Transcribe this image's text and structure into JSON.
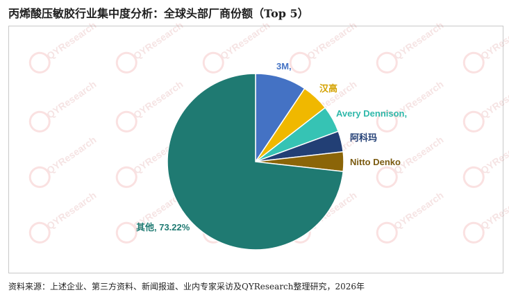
{
  "title": "丙烯酸压敏胶行业集中度分析：全球头部厂商份额（Top 5）",
  "source": "资料来源：上述企业、第三方资料、新闻报道、业内专家采访及QYResearch整理研究，2026年",
  "watermark_text": "QYResearch",
  "chart_data": {
    "type": "pie",
    "title": "丙烯酸压敏胶行业集中度分析：全球头部厂商份额（Top 5）",
    "start_angle_deg": 0,
    "direction": "clockwise",
    "slices": [
      {
        "label": "3M,",
        "value": 9.4,
        "color": "#4472C4",
        "label_color": "#4472C4"
      },
      {
        "label": "汉高",
        "value": 5.1,
        "color": "#F0B800",
        "label_color": "#D4A200"
      },
      {
        "label": "Avery Dennison,",
        "value": 4.9,
        "color": "#36C3B4",
        "label_color": "#2FB8AA"
      },
      {
        "label": "阿科玛",
        "value": 3.8,
        "color": "#223F75",
        "label_color": "#223F75"
      },
      {
        "label": "Nitto Denko",
        "value": 3.58,
        "color": "#8B6508",
        "label_color": "#7A5A10"
      },
      {
        "label": "其他, 73.22%",
        "value": 73.22,
        "color": "#1F7A72",
        "label_color": "#1F7A72"
      }
    ]
  }
}
